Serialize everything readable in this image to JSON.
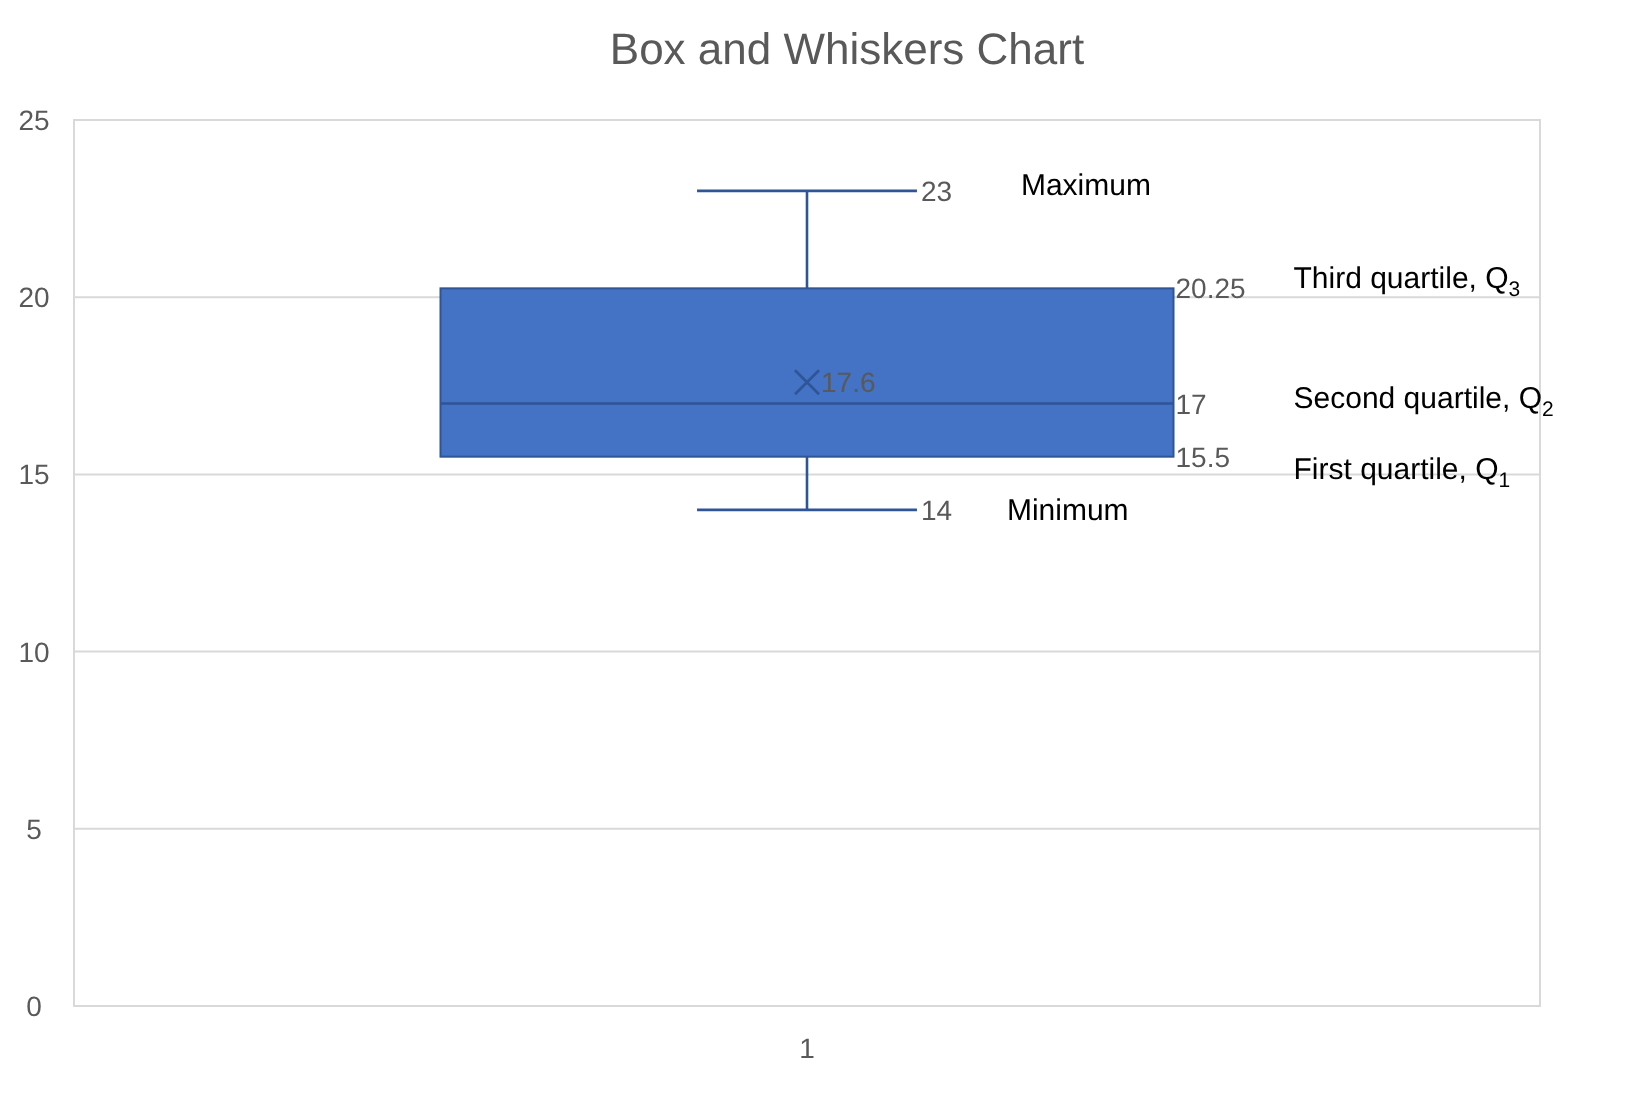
{
  "chart_data": {
    "type": "box",
    "title": "Box and Whiskers Chart",
    "categories": [
      "1"
    ],
    "color": "#4472c4",
    "boxes": [
      {
        "low": 14,
        "q1": 15.5,
        "median": 17,
        "q3": 20.25,
        "high": 23,
        "mean": 17.6
      }
    ],
    "ylim": [
      0,
      25
    ],
    "yticks": [
      0,
      5,
      10,
      15,
      20,
      25
    ],
    "grid": "y",
    "annotations": [
      "23",
      "20.25",
      "17.6",
      "17",
      "15.5",
      "14",
      "Maximum",
      "Third quartile, Q$_{3}$",
      "Second quartile, Q$_{2}$",
      "First quartile, Q$_{1}$",
      "Minimum"
    ]
  }
}
